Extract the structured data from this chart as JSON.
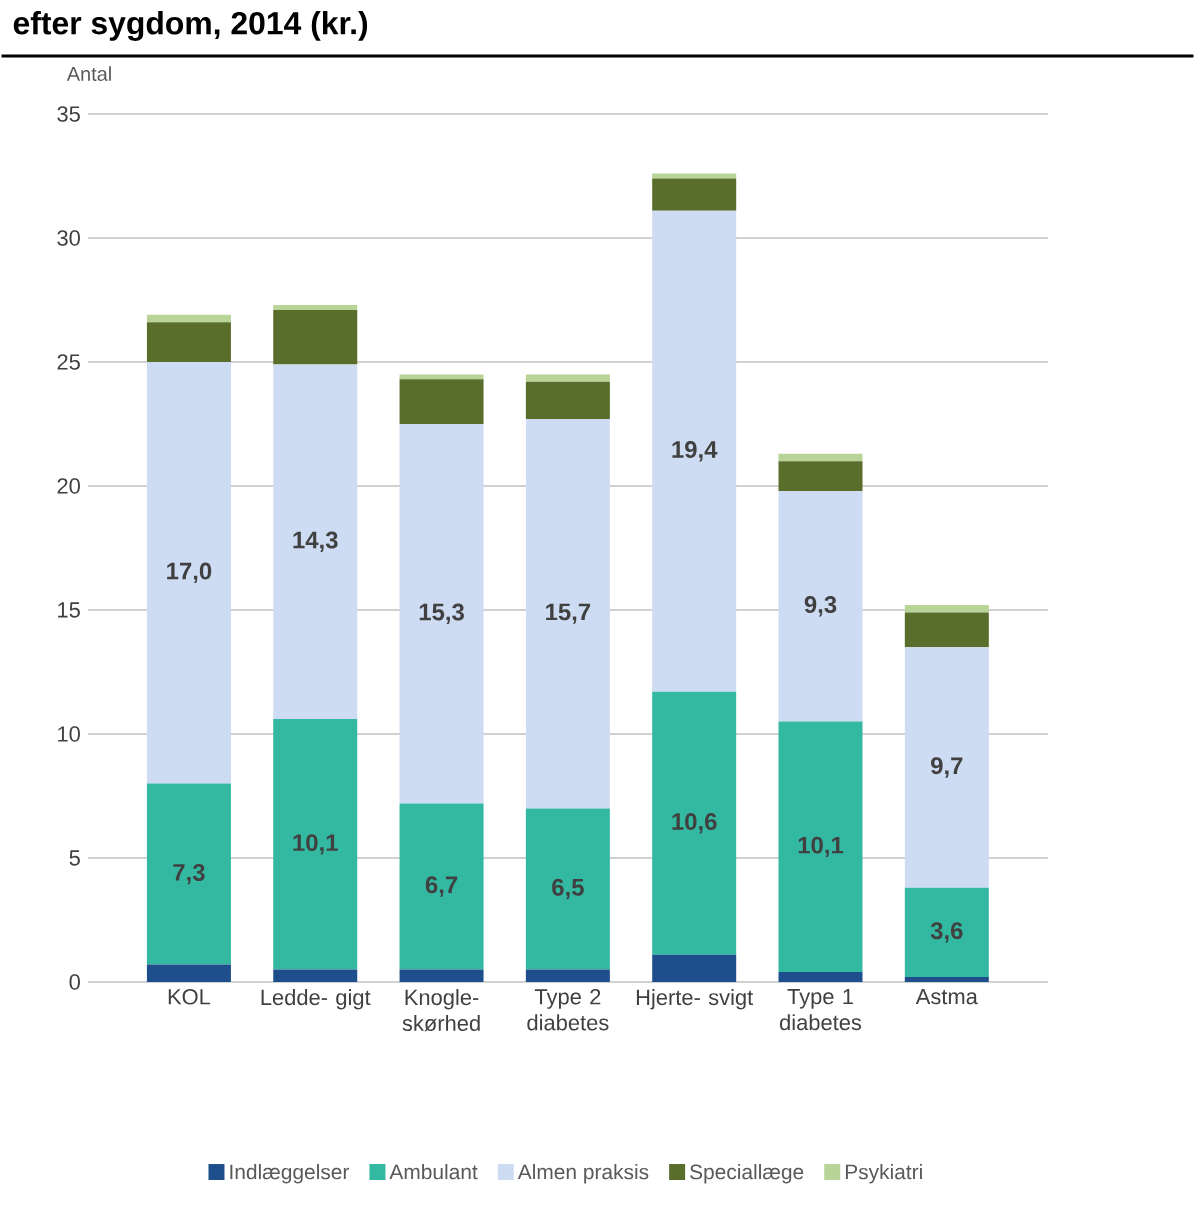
{
  "chart_data": {
    "type": "bar",
    "stacked": true,
    "title": "efter sygdom, 2014 (kr.)",
    "ylabel": "Antal",
    "categories": [
      "KOL",
      "Ledde- gigt",
      "Knogle- skørhed",
      "Type 2 diabetes",
      "Hjerte- svigt",
      "Type 1 diabetes",
      "Astma"
    ],
    "series": [
      {
        "name": "Indlæggelser",
        "color": "#1f4e8c",
        "values": [
          0.7,
          0.5,
          0.5,
          0.5,
          1.1,
          0.4,
          0.2
        ]
      },
      {
        "name": "Ambulant",
        "color": "#33b9a2",
        "values": [
          7.3,
          10.1,
          6.7,
          6.5,
          10.6,
          10.1,
          3.6
        ],
        "value_labels": [
          "7,3",
          "10,1",
          "6,7",
          "6,5",
          "10,6",
          "10,1",
          "3,6"
        ]
      },
      {
        "name": "Almen praksis",
        "color": "#cddcf2",
        "values": [
          17.0,
          14.3,
          15.3,
          15.7,
          19.4,
          9.3,
          9.7
        ],
        "value_labels": [
          "17,0",
          "14,3",
          "15,3",
          "15,7",
          "19,4",
          "9,3",
          "9,7"
        ]
      },
      {
        "name": "Speciallæge",
        "color": "#5a6e2c",
        "values": [
          1.6,
          2.2,
          1.8,
          1.5,
          1.3,
          1.2,
          1.4
        ]
      },
      {
        "name": "Psykiatri",
        "color": "#b8d496",
        "values": [
          0.3,
          0.2,
          0.2,
          0.3,
          0.2,
          0.3,
          0.3
        ]
      }
    ],
    "ylim": [
      0,
      35
    ],
    "yticks": [
      0,
      5,
      10,
      15,
      20,
      25,
      30,
      35
    ],
    "grid": "y",
    "legend": "bottom"
  }
}
